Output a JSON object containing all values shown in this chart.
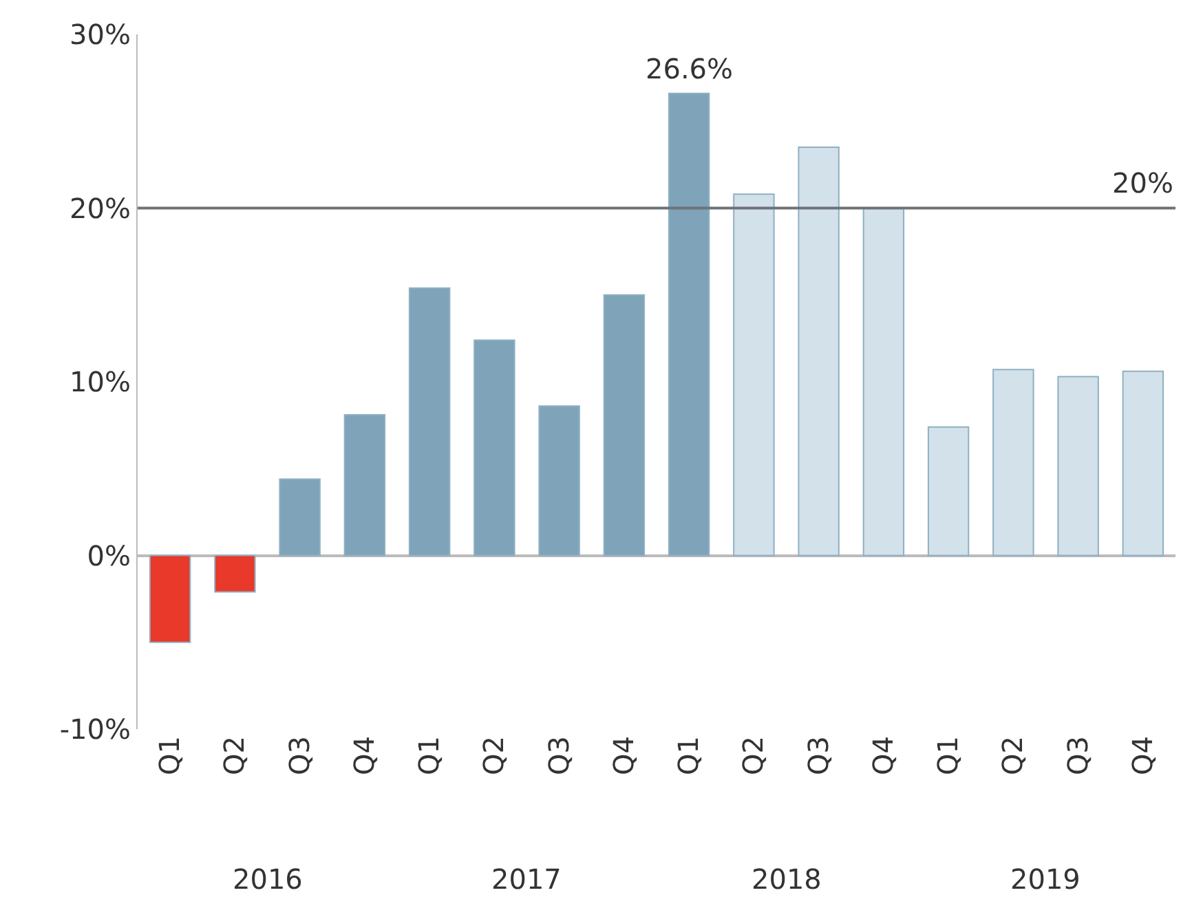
{
  "chart_data": {
    "type": "bar",
    "categories": [
      "Q1",
      "Q2",
      "Q3",
      "Q4",
      "Q1",
      "Q2",
      "Q3",
      "Q4",
      "Q1",
      "Q2",
      "Q3",
      "Q4",
      "Q1",
      "Q2",
      "Q3",
      "Q4"
    ],
    "values": [
      -5.0,
      -2.1,
      4.4,
      8.1,
      15.4,
      12.4,
      8.6,
      15.0,
      26.6,
      20.8,
      23.5,
      20.0,
      7.4,
      10.7,
      10.3,
      10.6
    ],
    "colors": [
      "#e8392a",
      "#e8392a",
      "#7fa3b8",
      "#7fa3b8",
      "#7fa3b8",
      "#7fa3b8",
      "#7fa3b8",
      "#7fa3b8",
      "#7fa3b8",
      "#d2e1ea",
      "#d2e1ea",
      "#d2e1ea",
      "#d2e1ea",
      "#d2e1ea",
      "#d2e1ea",
      "#d2e1ea"
    ],
    "value_labels": [
      null,
      null,
      null,
      null,
      null,
      null,
      null,
      null,
      "26.6%",
      null,
      null,
      null,
      null,
      null,
      null,
      null
    ],
    "ylim": [
      -10,
      30
    ],
    "yticks": [
      {
        "value": -10,
        "label": "-10%"
      },
      {
        "value": 0,
        "label": "0%"
      },
      {
        "value": 10,
        "label": "10%"
      },
      {
        "value": 20,
        "label": "20%"
      },
      {
        "value": 30,
        "label": "30%"
      }
    ],
    "ref_lines": [
      {
        "axis": "y",
        "value": 20,
        "label": "20%",
        "color": "#6d7378"
      }
    ],
    "annotations": [
      "2016",
      "2017",
      "2018",
      "2019"
    ]
  }
}
